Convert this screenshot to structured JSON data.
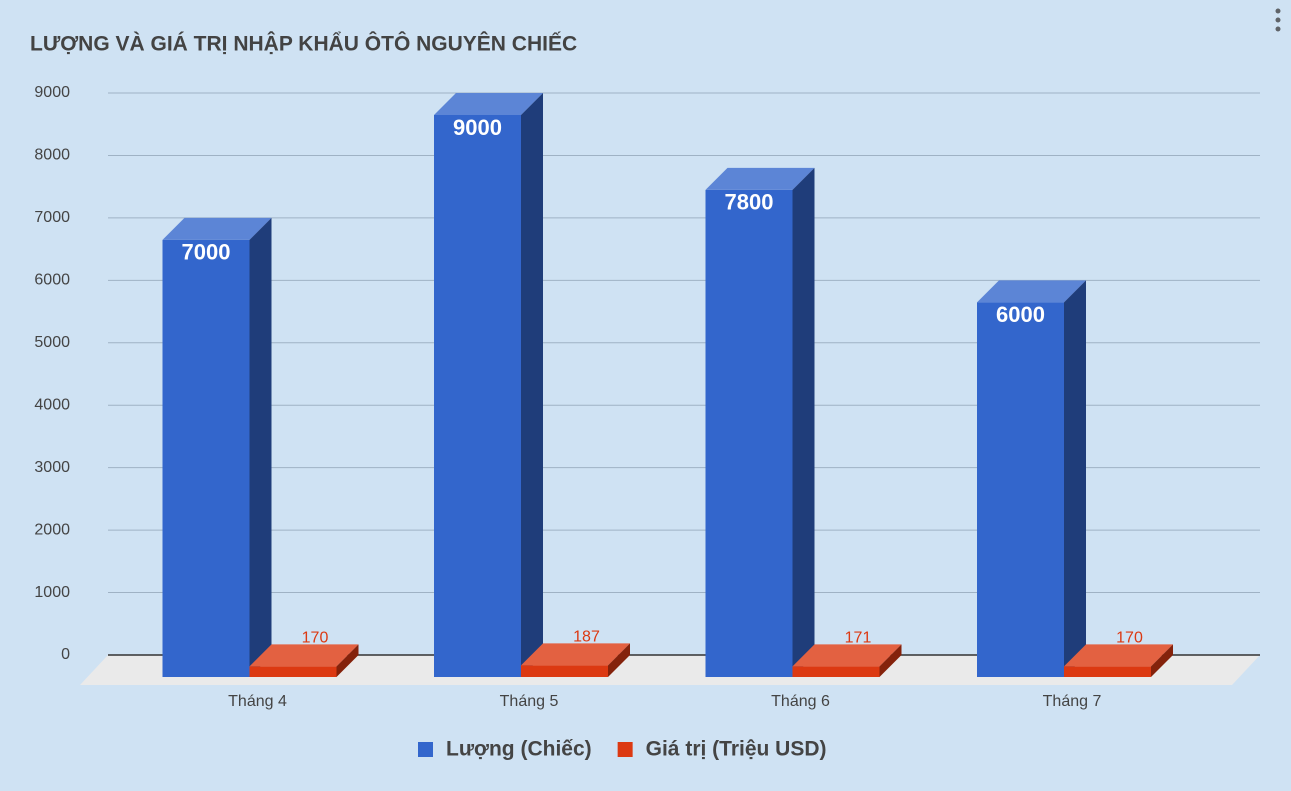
{
  "chart_data": {
    "type": "bar3d",
    "title": "LƯỢNG VÀ GIÁ TRỊ NHẬP KHẨU ÔTÔ NGUYÊN CHIẾC",
    "categories": [
      "Tháng 4",
      "Tháng 5",
      "Tháng 6",
      "Tháng 7"
    ],
    "series": [
      {
        "name": "Lượng (Chiếc)",
        "color": "#3366cc",
        "values": [
          7000,
          9000,
          7800,
          6000
        ]
      },
      {
        "name": "Giá trị (Triệu USD)",
        "color": "#dc3912",
        "values": [
          170,
          187,
          171,
          170
        ]
      }
    ],
    "ylim": [
      0,
      9000
    ],
    "yticks": [
      0,
      1000,
      2000,
      3000,
      4000,
      5000,
      6000,
      7000,
      8000,
      9000
    ],
    "grid": true,
    "legend": "bottom"
  }
}
